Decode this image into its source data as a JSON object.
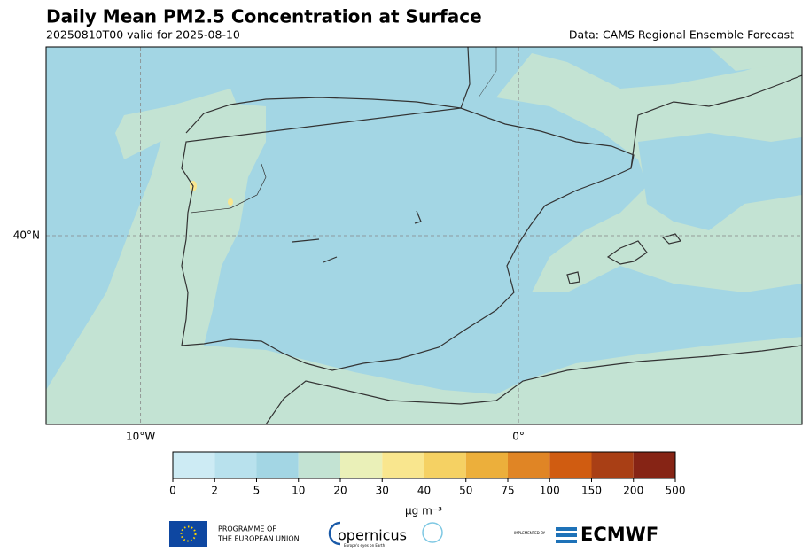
{
  "map": {
    "title": "Daily Mean PM2.5 Concentration at Surface",
    "subtitle": "20250810T00 valid for 2025-08-10",
    "source": "Data: CAMS Regional Ensemble Forecast",
    "xlim": [
      -12.5,
      7.5
    ],
    "ylim": [
      35,
      45
    ],
    "xticks": [
      {
        "value": -10,
        "label": "10°W"
      },
      {
        "value": 0,
        "label": "0°"
      }
    ],
    "yticks": [
      {
        "value": 40,
        "label": "40°N"
      }
    ],
    "colorbar": {
      "ticks": [
        0,
        2,
        5,
        10,
        20,
        30,
        40,
        50,
        75,
        100,
        150,
        200,
        500
      ],
      "colors": [
        "#cdebf4",
        "#b8e1ed",
        "#a3d6e4",
        "#c3e3d3",
        "#eaf0b8",
        "#f9e68e",
        "#f5d163",
        "#ecaf3b",
        "#e08525",
        "#d05c11",
        "#a93f15",
        "#862415"
      ],
      "unit": "μg m⁻³"
    }
  },
  "logos": {
    "eu_line1": "PROGRAMME OF",
    "eu_line2": "THE EUROPEAN UNION",
    "copernicus": "opernicus",
    "copernicus_tagline": "Europe's eyes on Earth",
    "implemented_by": "IMPLEMENTED BY",
    "ecmwf": "ECMWF"
  }
}
